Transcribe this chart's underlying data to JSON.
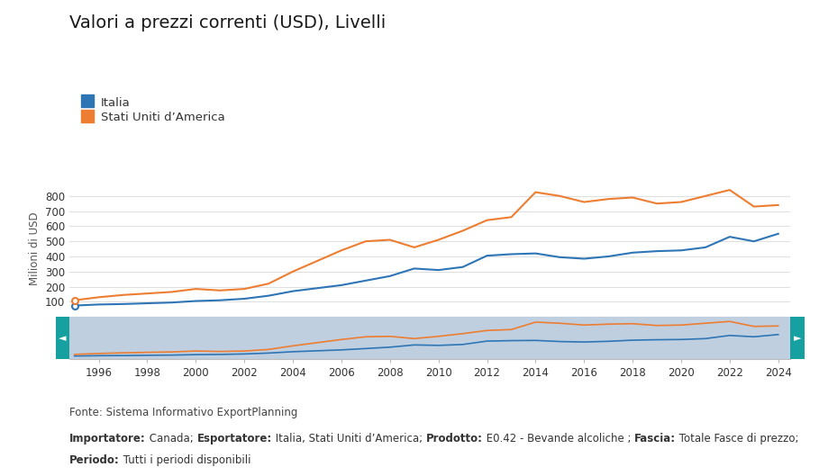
{
  "title": "Valori a prezzi correnti (USD), Livelli",
  "ylabel": "Milioni di USD",
  "years": [
    1995,
    1996,
    1997,
    1998,
    1999,
    2000,
    2001,
    2002,
    2003,
    2004,
    2005,
    2006,
    2007,
    2008,
    2009,
    2010,
    2011,
    2012,
    2013,
    2014,
    2015,
    2016,
    2017,
    2018,
    2019,
    2020,
    2021,
    2022,
    2023,
    2024
  ],
  "italia": [
    75,
    82,
    85,
    90,
    95,
    105,
    110,
    120,
    140,
    170,
    190,
    210,
    240,
    270,
    320,
    310,
    330,
    405,
    415,
    420,
    395,
    385,
    400,
    425,
    435,
    440,
    460,
    530,
    500,
    550
  ],
  "usa": [
    110,
    130,
    145,
    155,
    165,
    185,
    175,
    185,
    220,
    300,
    370,
    440,
    500,
    510,
    460,
    510,
    570,
    640,
    660,
    825,
    800,
    760,
    780,
    790,
    750,
    760,
    800,
    840,
    730,
    740
  ],
  "italia_color": "#2e75b6",
  "usa_color": "#ed7d31",
  "background_color": "#ffffff",
  "minimap_bg": "#bfcfdf",
  "teal_color": "#17a0a0",
  "ylim": [
    0,
    900
  ],
  "yticks": [
    100,
    200,
    300,
    400,
    500,
    600,
    700,
    800
  ],
  "source_text": "Fonte: Sistema Informativo ExportPlanning",
  "legend_italia": "Italia",
  "legend_usa": "Stati Uniti d’America",
  "footer_line2": [
    [
      "Importatore:",
      true
    ],
    [
      " Canada; ",
      false
    ],
    [
      "Esportatore:",
      true
    ],
    [
      " Italia, Stati Uniti d’America; ",
      false
    ],
    [
      "Prodotto:",
      true
    ],
    [
      " E0.42 - Bevande alcoliche ; ",
      false
    ],
    [
      "Fascia:",
      true
    ],
    [
      " Totale Fasce di prezzo;",
      false
    ]
  ],
  "footer_line3": [
    [
      "Periodo:",
      true
    ],
    [
      " Tutti i periodi disponibili",
      false
    ]
  ]
}
